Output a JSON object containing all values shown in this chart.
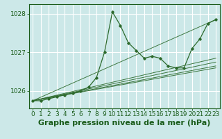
{
  "bg_color": "#cce8e8",
  "grid_color": "#ffffff",
  "line_color": "#2d6a2d",
  "title": "Graphe pression niveau de la mer (hPa)",
  "ylim": [
    1025.55,
    1028.25
  ],
  "xlim": [
    -0.5,
    23.5
  ],
  "yticks": [
    1026,
    1027,
    1028
  ],
  "xticks": [
    0,
    1,
    2,
    3,
    4,
    5,
    6,
    7,
    8,
    9,
    10,
    11,
    12,
    13,
    14,
    15,
    16,
    17,
    18,
    19,
    20,
    21,
    22,
    23
  ],
  "main_series": {
    "x": [
      0,
      1,
      2,
      3,
      4,
      5,
      6,
      7,
      8,
      9,
      10,
      11,
      12,
      13,
      14,
      15,
      16,
      17,
      18,
      19,
      20,
      21,
      22,
      23
    ],
    "y": [
      1025.75,
      1025.75,
      1025.8,
      1025.85,
      1025.9,
      1025.95,
      1026.0,
      1026.1,
      1026.35,
      1027.0,
      1028.05,
      1027.7,
      1027.25,
      1027.05,
      1026.85,
      1026.9,
      1026.85,
      1026.65,
      1026.6,
      1026.6,
      1027.1,
      1027.35,
      1027.75,
      1027.85
    ]
  },
  "straight_lines": [
    {
      "x": [
        0,
        23
      ],
      "y": [
        1025.75,
        1026.6
      ]
    },
    {
      "x": [
        0,
        23
      ],
      "y": [
        1025.75,
        1026.65
      ]
    },
    {
      "x": [
        0,
        23
      ],
      "y": [
        1025.75,
        1026.75
      ]
    },
    {
      "x": [
        0,
        23
      ],
      "y": [
        1025.75,
        1026.85
      ]
    },
    {
      "x": [
        0,
        23
      ],
      "y": [
        1025.75,
        1027.85
      ]
    }
  ],
  "title_fontsize": 8,
  "tick_fontsize": 6.5,
  "title_color": "#1a5c1a",
  "tick_color": "#1a5c1a",
  "axis_color": "#1a5c1a"
}
